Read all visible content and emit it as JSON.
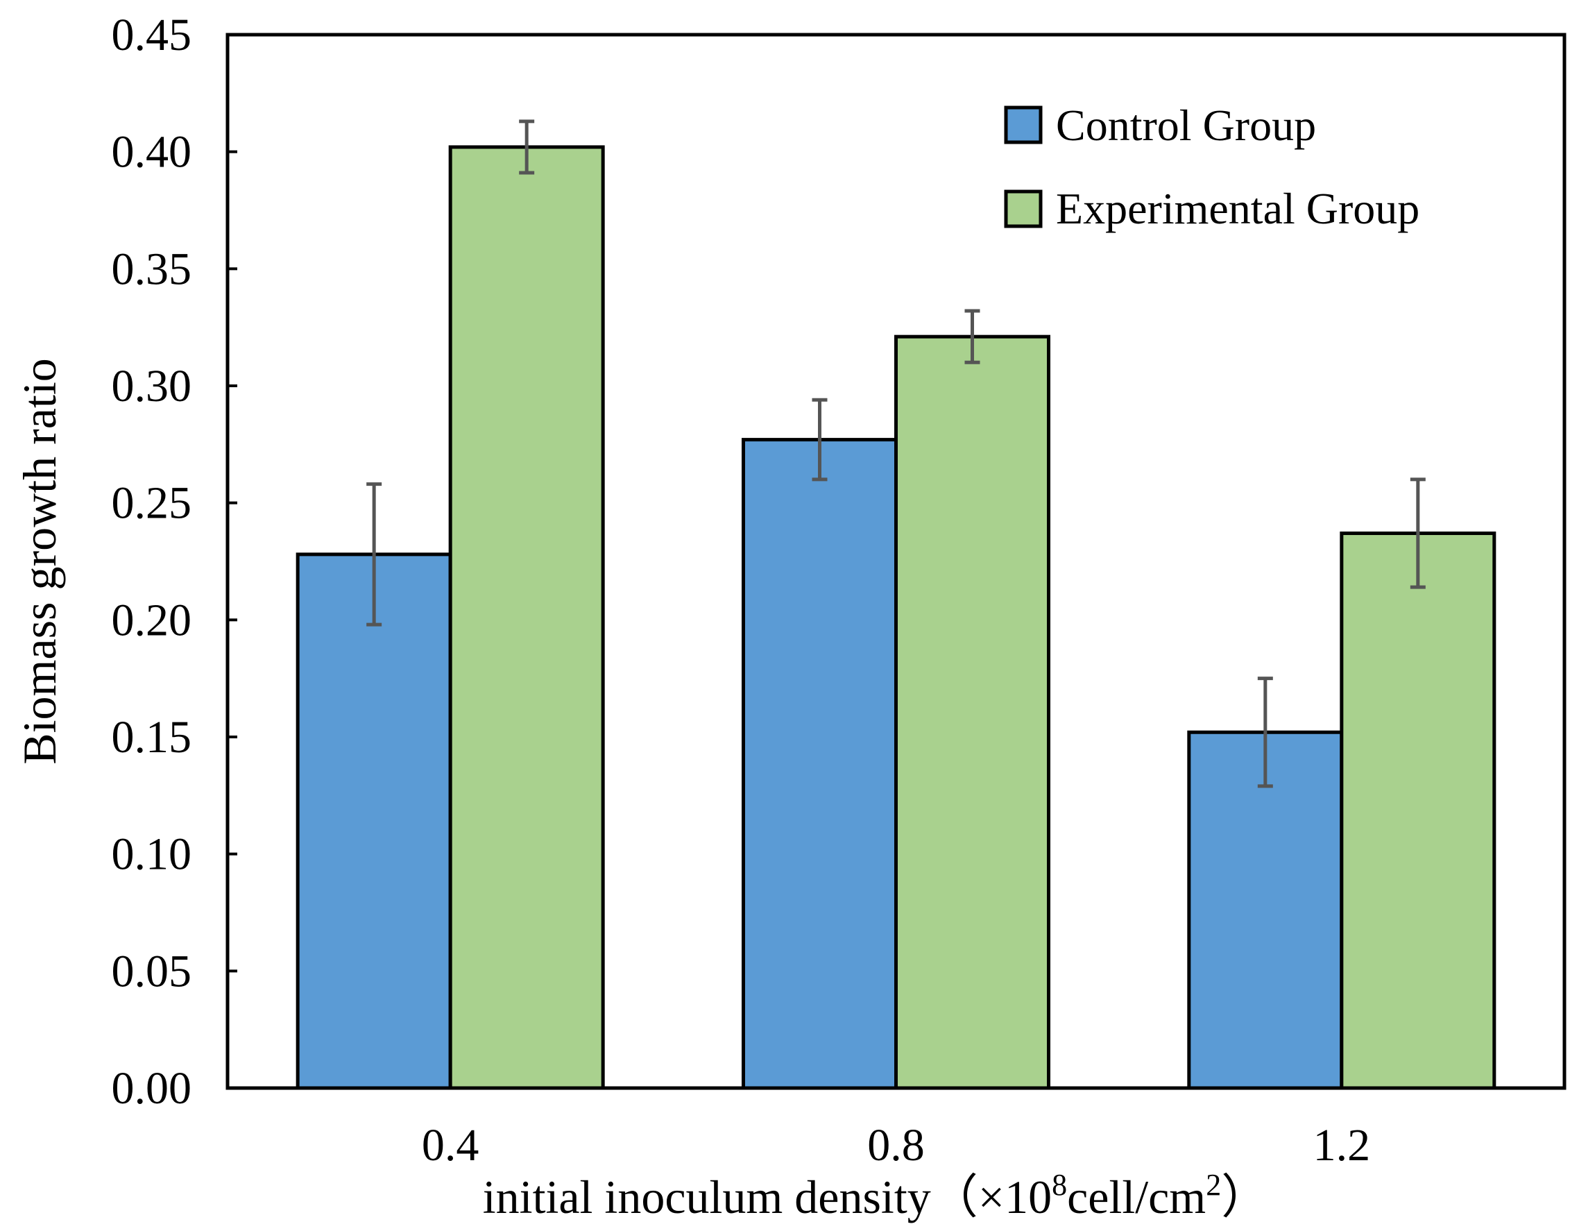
{
  "chart_data": {
    "type": "bar",
    "title": "",
    "xlabel": {
      "prefix": "initial inoculum density（×10",
      "sup1": "8",
      "mid": "cell/cm",
      "sup2": "2",
      "suffix": "）"
    },
    "ylabel": "Biomass growth ratio",
    "categories": [
      "0.4",
      "0.8",
      "1.2"
    ],
    "ylim": [
      0,
      0.45
    ],
    "yticks": [
      "0.00",
      "0.05",
      "0.10",
      "0.15",
      "0.20",
      "0.25",
      "0.30",
      "0.35",
      "0.40",
      "0.45"
    ],
    "legend_position": "top-right",
    "grid": false,
    "series": [
      {
        "name": "Control Group",
        "color": "#5b9bd5",
        "values": [
          0.228,
          0.277,
          0.152
        ],
        "errors": [
          0.03,
          0.017,
          0.023
        ]
      },
      {
        "name": "Experimental Group",
        "color": "#a9d18e",
        "values": [
          0.402,
          0.321,
          0.237
        ],
        "errors": [
          0.011,
          0.011,
          0.023
        ]
      }
    ]
  }
}
